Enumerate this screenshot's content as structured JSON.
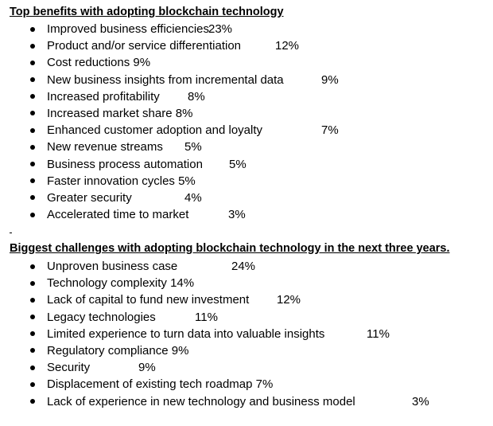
{
  "benefits": {
    "heading": "Top benefits with adopting blockchain technology",
    "items": [
      {
        "label": "Improved business efficiencies",
        "value": "23%"
      },
      {
        "label": "Product and/or service differentiation",
        "value": "12%"
      },
      {
        "label": "Cost reductions 9%",
        "value": ""
      },
      {
        "label": "New business insights from incremental data",
        "value": "9%"
      },
      {
        "label": "Increased profitability",
        "value": "8%"
      },
      {
        "label": "Increased market share 8%",
        "value": ""
      },
      {
        "label": "Enhanced customer adoption and loyalty",
        "value": "7%"
      },
      {
        "label": "New revenue streams",
        "value": "5%"
      },
      {
        "label": "Business process automation",
        "value": "5%"
      },
      {
        "label": "Faster innovation cycles 5%",
        "value": ""
      },
      {
        "label": "Greater security",
        "value": "4%"
      },
      {
        "label": "Accelerated time to market",
        "value": "3%"
      }
    ]
  },
  "challenges": {
    "heading": "Biggest challenges with adopting blockchain technology in the next three years.",
    "items": [
      {
        "label": "Unproven business case",
        "value": "24%"
      },
      {
        "label": "Technology complexity 14%",
        "value": ""
      },
      {
        "label": "Lack of capital to fund new investment",
        "value": "12%"
      },
      {
        "label": "Legacy technologies",
        "value": "11%"
      },
      {
        "label": "Limited experience to turn data into valuable insights",
        "value": "11%"
      },
      {
        "label": "Regulatory compliance 9%",
        "value": ""
      },
      {
        "label": "Security",
        "value": "9%"
      },
      {
        "label": "Displacement of existing tech roadmap 7%",
        "value": ""
      },
      {
        "label": "Lack of experience in new technology and business model",
        "value": "3%"
      }
    ]
  }
}
